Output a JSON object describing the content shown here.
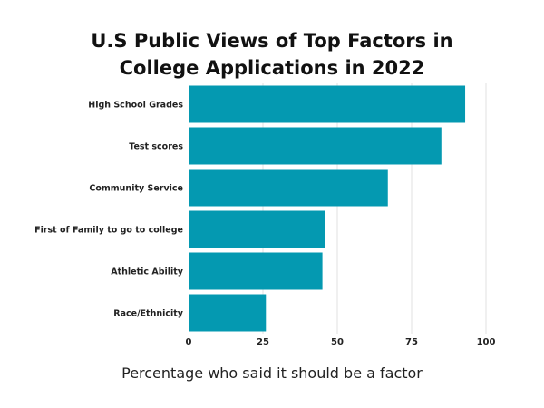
{
  "chart_data": {
    "type": "bar",
    "orientation": "horizontal",
    "title_lines": [
      "U.S Public Views of Top Factors in",
      "College Applications in 2022"
    ],
    "xlabel": "Percentage who said it should be a factor",
    "ylabel": "",
    "categories": [
      "High School Grades",
      "Test scores",
      "Community Service",
      "First of Family to go to college",
      "Athletic Ability",
      "Race/Ethnicity"
    ],
    "values": [
      93,
      85,
      67,
      46,
      45,
      26
    ],
    "xlim": [
      0,
      100
    ],
    "xticks": [
      0,
      25,
      50,
      75,
      100
    ],
    "grid": true,
    "legend": "none",
    "bar_color": "#0499b1"
  }
}
